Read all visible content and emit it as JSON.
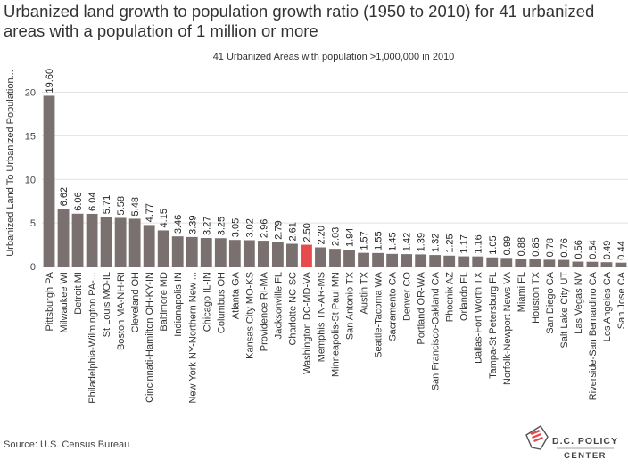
{
  "title": "Urbanized land growth to population growth ratio (1950 to 2010) for 41 urbanized areas with a population of 1 million or more",
  "source": "Source: U.S. Census Bureau",
  "logo": {
    "line1": "D.C. POLICY",
    "line2": "CENTER"
  },
  "colors": {
    "bar": "#7a7070",
    "highlight": "#e64a4a",
    "grid": "#e2e2e2",
    "text": "#333333"
  },
  "chart_data": {
    "type": "bar",
    "subtitle": "41 Urbanized Areas with population >1,000,000 in 2010",
    "ylabel": "Urbanized Land To Urbanized Population...",
    "xlabel": "",
    "ylim": [
      0,
      22
    ],
    "yticks": [
      0,
      5,
      10,
      15,
      20
    ],
    "grid": true,
    "highlight_category": "Washington DC-MD-VA",
    "categories": [
      "Pittsburgh PA",
      "Milwaukee WI",
      "Detroit MI",
      "Philadelphia-Wilmington PA-...",
      "St Louis MO-IL",
      "Boston MA-NH-RI",
      "Cleveland OH",
      "Cincinnati-Hamilton OH-KY-IN",
      "Baltimore MD",
      "Indianapolis IN",
      "New York NY-Northern New ...",
      "Chicago IL-IN",
      "Columbus OH",
      "Atlanta GA",
      "Kansas City MO-KS",
      "Providence RI-MA",
      "Jacksonville FL",
      "Charlotte NC-SC",
      "Washington DC-MD-VA",
      "Memphis TN-AR-MS",
      "Minneapolis-St Paul MN",
      "San Antonio TX",
      "Austin TX",
      "Seattle-Tacoma WA",
      "Sacramento CA",
      "Denver CO",
      "Portland OR-WA",
      "San Francisco-Oakland CA",
      "Phoenix AZ",
      "Orlando FL",
      "Dallas-Fort Worth TX",
      "Tampa-St Petersburg FL",
      "Norfolk-Newport News VA",
      "Miami FL",
      "Houston TX",
      "San Diego CA",
      "Salt Lake City UT",
      "Las Vegas NV",
      "Riverside-San Bernardino CA",
      "Los Angeles CA",
      "San Jose CA"
    ],
    "values": [
      19.6,
      6.62,
      6.06,
      6.04,
      5.71,
      5.58,
      5.48,
      4.77,
      4.15,
      3.46,
      3.39,
      3.27,
      3.25,
      3.05,
      3.02,
      2.96,
      2.79,
      2.61,
      2.5,
      2.2,
      2.03,
      1.94,
      1.57,
      1.55,
      1.45,
      1.42,
      1.39,
      1.32,
      1.25,
      1.17,
      1.16,
      1.05,
      0.99,
      0.88,
      0.85,
      0.78,
      0.76,
      0.56,
      0.54,
      0.49,
      0.44
    ],
    "value_labels": [
      "19.60",
      "6.62",
      "6.06",
      "6.04",
      "5.71",
      "5.58",
      "5.48",
      "4.77",
      "4.15",
      "3.46",
      "3.39",
      "3.27",
      "3.25",
      "3.05",
      "3.02",
      "2.96",
      "2.79",
      "2.61",
      "2.50",
      "2.20",
      "2.03",
      "1.94",
      "1.57",
      "1.55",
      "1.45",
      "1.42",
      "1.39",
      "1.32",
      "1.25",
      "1.17",
      "1.16",
      "1.05",
      "0.99",
      "0.88",
      "0.85",
      "0.78",
      "0.76",
      "0.56",
      "0.54",
      "0.49",
      "0.44"
    ]
  }
}
